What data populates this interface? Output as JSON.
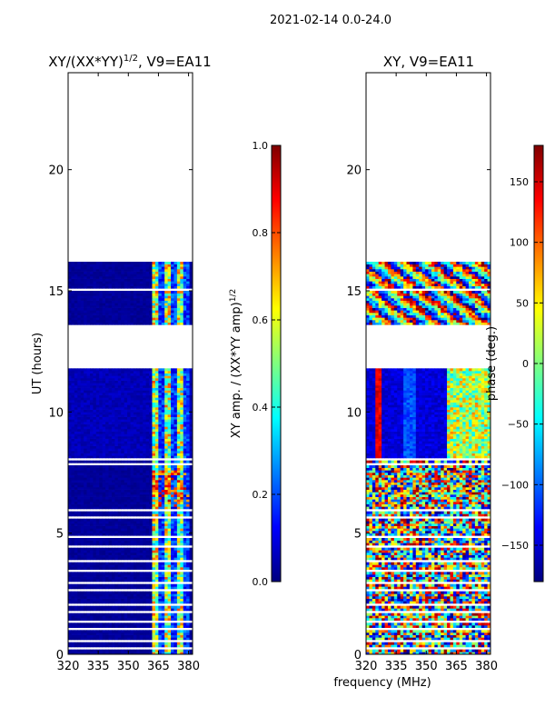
{
  "suptitle": "2021-02-14 0.0-24.0",
  "xlabel": "frequency (MHz)",
  "colors": {
    "jet": [
      "#00007f",
      "#0000ff",
      "#007fff",
      "#00ffff",
      "#7fff7f",
      "#ffff00",
      "#ff7f00",
      "#ff0000",
      "#7f0000"
    ]
  },
  "chart_data": [
    {
      "type": "heatmap",
      "title_main": "XY/(XX*YY)",
      "title_sup": "1/2",
      "title_tail": ", V9=EA11",
      "ylabel": "UT (hours)",
      "xlim": [
        320,
        382
      ],
      "ylim": [
        0,
        24
      ],
      "xticks": [
        320,
        335,
        350,
        365,
        380
      ],
      "yticks": [
        0,
        5,
        10,
        15,
        20
      ],
      "colorbar": {
        "label_main": "XY amp. / (XX*YY amp)",
        "label_sup": "1/2",
        "range": [
          0.0,
          1.0
        ],
        "ticks": [
          "0.0",
          "0.2",
          "0.4",
          "0.6",
          "0.8",
          "1.0"
        ]
      },
      "data_blocks": [
        {
          "hours": [
            0.0,
            1.7
          ],
          "cells": "low",
          "bright_band": [
            362,
            380
          ],
          "note": "sparse rows"
        },
        {
          "hours": [
            1.7,
            8.0
          ],
          "cells": "low",
          "bright_band": [
            362,
            380
          ]
        },
        {
          "hours": [
            8.1,
            11.8
          ],
          "cells": "low",
          "bright_band": [
            362,
            380
          ]
        },
        {
          "hours": [
            13.6,
            16.2
          ],
          "cells": "low",
          "bright_band": [
            362,
            380
          ]
        }
      ]
    },
    {
      "type": "heatmap",
      "title": "XY, V9=EA11",
      "xlim": [
        320,
        382
      ],
      "ylim": [
        0,
        24
      ],
      "xticks": [
        320,
        335,
        350,
        365,
        380
      ],
      "yticks": [
        0,
        5,
        10,
        15,
        20
      ],
      "colorbar": {
        "label": "phase (deg.)",
        "range": [
          -180,
          180
        ],
        "ticks": [
          "150",
          "100",
          "50",
          "0",
          "−50",
          "−100",
          "−150"
        ]
      },
      "data_blocks": [
        {
          "hours": [
            0.0,
            8.0
          ],
          "cells": "random phase"
        },
        {
          "hours": [
            8.1,
            11.8
          ],
          "cells": "mostly -180 with drift bands"
        },
        {
          "hours": [
            13.6,
            16.2
          ],
          "cells": "wrapping phase"
        }
      ]
    }
  ]
}
